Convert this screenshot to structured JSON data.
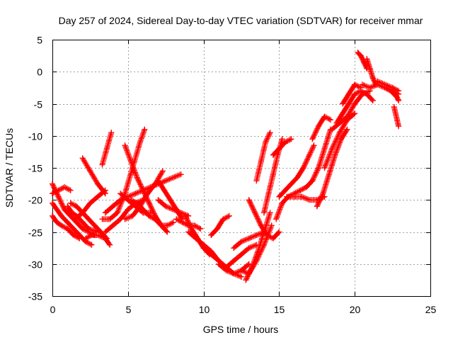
{
  "chart_data": {
    "type": "scatter",
    "title": "Day 257 of 2024, Sidereal Day-to-day VTEC variation (SDTVAR) for receiver mmar",
    "xlabel": "GPS time / hours",
    "ylabel": "SDTVAR / TECUs",
    "xlim": [
      0,
      25
    ],
    "ylim": [
      -35,
      5
    ],
    "xticks": [
      0,
      5,
      10,
      15,
      20,
      25
    ],
    "yticks": [
      -35,
      -30,
      -25,
      -20,
      -15,
      -10,
      -5,
      0,
      5
    ],
    "grid": true,
    "marker": "+",
    "color": "#ff0000",
    "series": [
      {
        "name": "s1",
        "x": [
          0.0,
          0.4,
          0.8,
          1.2,
          1.6,
          2.0,
          2.4,
          2.8
        ],
        "y": [
          -17.5,
          -19.5,
          -21.5,
          -22.5,
          -23.5,
          -24.5,
          -25.0,
          -25.5
        ]
      },
      {
        "name": "s2",
        "x": [
          0.0,
          0.3,
          0.6,
          1.0,
          1.4,
          1.8,
          2.2,
          2.6
        ],
        "y": [
          -20.5,
          -21.5,
          -22.5,
          -23.5,
          -24.5,
          -25.5,
          -26.5,
          -27.0
        ]
      },
      {
        "name": "s3",
        "x": [
          0.0,
          0.3,
          0.6,
          1.0,
          1.4,
          1.8
        ],
        "y": [
          -22.5,
          -23.5,
          -24.0,
          -24.5,
          -25.5,
          -26.0
        ]
      },
      {
        "name": "s4",
        "x": [
          0.0,
          0.4,
          0.8,
          1.2
        ],
        "y": [
          -19.0,
          -18.5,
          -18.0,
          -18.5
        ]
      },
      {
        "name": "s5",
        "x": [
          1.2,
          1.6,
          2.0,
          2.4,
          2.8,
          3.2,
          3.6
        ],
        "y": [
          -20.5,
          -21.0,
          -22.0,
          -23.0,
          -24.0,
          -25.0,
          -26.0
        ]
      },
      {
        "name": "s6",
        "x": [
          1.0,
          1.3,
          1.6,
          2.0,
          2.4,
          3.0
        ],
        "y": [
          -21.0,
          -22.0,
          -22.5,
          -23.5,
          -24.5,
          -25.0
        ]
      },
      {
        "name": "s7",
        "x": [
          1.5,
          2.0,
          2.5,
          3.0,
          3.5
        ],
        "y": [
          -23.0,
          -22.0,
          -20.5,
          -19.5,
          -18.5
        ]
      },
      {
        "name": "s8",
        "x": [
          2.0,
          2.5,
          3.0,
          3.5
        ],
        "y": [
          -13.5,
          -15.5,
          -17.5,
          -19.0
        ]
      },
      {
        "name": "s9",
        "x": [
          2.2,
          2.6,
          3.0,
          3.5,
          3.8
        ],
        "y": [
          -26.0,
          -25.5,
          -25.5,
          -26.0,
          -27.0
        ]
      },
      {
        "name": "s10",
        "x": [
          3.3,
          3.6,
          3.9
        ],
        "y": [
          -14.5,
          -12.0,
          -9.5
        ]
      },
      {
        "name": "s11",
        "x": [
          3.3,
          3.8,
          4.3,
          4.8,
          5.3,
          5.8,
          6.1
        ],
        "y": [
          -23.0,
          -23.0,
          -22.0,
          -19.0,
          -15.0,
          -11.0,
          -9.0
        ]
      },
      {
        "name": "s12",
        "x": [
          3.5,
          4.0,
          4.5,
          5.0,
          5.5,
          6.0
        ],
        "y": [
          -22.0,
          -21.0,
          -20.0,
          -19.5,
          -19.0,
          -18.5
        ]
      },
      {
        "name": "s13",
        "x": [
          3.5,
          4.0,
          4.5,
          5.0,
          5.5,
          6.0
        ],
        "y": [
          -25.0,
          -24.0,
          -23.0,
          -21.5,
          -20.5,
          -20.0
        ]
      },
      {
        "name": "s14",
        "x": [
          4.5,
          5.0,
          5.5,
          6.0,
          6.5
        ],
        "y": [
          -19.0,
          -20.0,
          -21.0,
          -22.0,
          -22.0
        ]
      },
      {
        "name": "s15",
        "x": [
          4.8,
          5.3,
          5.8,
          6.3,
          6.8,
          7.3
        ],
        "y": [
          -23.0,
          -22.5,
          -21.0,
          -19.0,
          -17.5,
          -15.5
        ]
      },
      {
        "name": "s16",
        "x": [
          5.2,
          5.6,
          6.0,
          6.4,
          6.8,
          7.2,
          7.6,
          8.0
        ],
        "y": [
          -20.0,
          -20.5,
          -21.5,
          -22.5,
          -23.0,
          -24.0,
          -24.0,
          -23.5
        ]
      },
      {
        "name": "s17",
        "x": [
          4.8,
          5.2,
          5.6,
          6.0,
          6.4,
          6.8,
          7.2,
          7.6
        ],
        "y": [
          -11.5,
          -14.0,
          -16.5,
          -18.5,
          -20.5,
          -22.5,
          -24.0,
          -25.0
        ]
      },
      {
        "name": "s18",
        "x": [
          6.0,
          6.5,
          7.0,
          7.5,
          8.0,
          8.5
        ],
        "y": [
          -18.5,
          -18.0,
          -17.5,
          -17.0,
          -16.5,
          -16.0
        ]
      },
      {
        "name": "s19",
        "x": [
          7.0,
          7.4,
          7.8,
          8.2,
          8.6
        ],
        "y": [
          -17.0,
          -18.5,
          -20.0,
          -21.5,
          -23.0
        ]
      },
      {
        "name": "s20",
        "x": [
          7.0,
          7.5,
          8.0,
          8.5,
          9.0
        ],
        "y": [
          -20.0,
          -21.0,
          -21.5,
          -22.0,
          -22.5
        ]
      },
      {
        "name": "s21",
        "x": [
          8.2,
          8.6,
          9.0,
          9.4,
          9.8
        ],
        "y": [
          -23.0,
          -23.5,
          -24.0,
          -24.0,
          -24.5
        ]
      },
      {
        "name": "s22",
        "x": [
          8.8,
          9.2,
          9.6,
          10.0,
          10.4
        ],
        "y": [
          -22.5,
          -24.5,
          -26.0,
          -27.5,
          -28.5
        ]
      },
      {
        "name": "s23",
        "x": [
          9.0,
          9.5,
          10.0,
          10.5,
          11.0,
          11.5
        ],
        "y": [
          -25.0,
          -26.0,
          -27.0,
          -28.0,
          -29.5,
          -30.5
        ]
      },
      {
        "name": "s24",
        "x": [
          10.0,
          10.5,
          11.0,
          11.5,
          12.0,
          12.5
        ],
        "y": [
          -27.5,
          -28.5,
          -29.5,
          -30.5,
          -31.5,
          -32.0
        ]
      },
      {
        "name": "s25",
        "x": [
          10.5,
          10.9,
          11.3,
          11.7
        ],
        "y": [
          -25.5,
          -24.5,
          -23.0,
          -22.5
        ]
      },
      {
        "name": "s26",
        "x": [
          11.0,
          11.5,
          12.0,
          12.5,
          13.0
        ],
        "y": [
          -30.0,
          -31.0,
          -31.5,
          -31.0,
          -30.0
        ]
      },
      {
        "name": "s27",
        "x": [
          11.5,
          12.0,
          12.5,
          13.0,
          13.5
        ],
        "y": [
          -30.5,
          -29.5,
          -28.5,
          -27.5,
          -27.0
        ]
      },
      {
        "name": "s28",
        "x": [
          12.0,
          12.5,
          13.0,
          13.5,
          14.0
        ],
        "y": [
          -27.5,
          -26.5,
          -26.0,
          -25.5,
          -25.0
        ]
      },
      {
        "name": "s29",
        "x": [
          12.5,
          13.0,
          13.5,
          14.0,
          14.5
        ],
        "y": [
          -31.0,
          -31.5,
          -29.5,
          -27.0,
          -24.0
        ]
      },
      {
        "name": "s30",
        "x": [
          12.8,
          13.2,
          13.6,
          14.0,
          14.4
        ],
        "y": [
          -32.5,
          -30.5,
          -28.0,
          -25.0,
          -22.0
        ]
      },
      {
        "name": "s31",
        "x": [
          13.0,
          13.4,
          13.8,
          14.2,
          14.6,
          15.0
        ],
        "y": [
          -20.0,
          -22.0,
          -24.0,
          -25.5,
          -26.0,
          -25.0
        ]
      },
      {
        "name": "s32",
        "x": [
          13.5,
          13.8,
          14.1,
          14.4
        ],
        "y": [
          -17.0,
          -14.0,
          -11.0,
          -9.5
        ]
      },
      {
        "name": "s33",
        "x": [
          14.0,
          14.3,
          14.6,
          14.9,
          15.2
        ],
        "y": [
          -22.0,
          -19.0,
          -16.0,
          -13.0,
          -10.5
        ]
      },
      {
        "name": "s34",
        "x": [
          14.6,
          15.0,
          15.4,
          15.8
        ],
        "y": [
          -13.0,
          -12.0,
          -11.0,
          -10.5
        ]
      },
      {
        "name": "s35",
        "x": [
          14.8,
          15.2,
          15.6,
          16.0,
          16.4,
          16.8
        ],
        "y": [
          -23.0,
          -20.5,
          -19.5,
          -19.0,
          -18.5,
          -18.0
        ]
      },
      {
        "name": "s36",
        "x": [
          15.0,
          15.4,
          15.8,
          16.2,
          16.6,
          17.0,
          17.3
        ],
        "y": [
          -19.5,
          -18.5,
          -17.5,
          -16.5,
          -15.0,
          -13.0,
          -11.5
        ]
      },
      {
        "name": "s37",
        "x": [
          15.5,
          16.0,
          16.5,
          17.0,
          17.5,
          18.0
        ],
        "y": [
          -19.5,
          -19.5,
          -19.5,
          -20.0,
          -20.0,
          -19.5
        ]
      },
      {
        "name": "s38",
        "x": [
          17.5,
          17.9,
          18.3,
          18.7,
          19.1,
          19.5
        ],
        "y": [
          -21.0,
          -19.0,
          -16.0,
          -13.0,
          -10.5,
          -9.0
        ]
      },
      {
        "name": "s39",
        "x": [
          16.8,
          17.2,
          17.6,
          18.0,
          18.4
        ],
        "y": [
          -18.0,
          -17.0,
          -15.0,
          -12.0,
          -9.0
        ]
      },
      {
        "name": "s40",
        "x": [
          17.2,
          17.6,
          18.0,
          18.4
        ],
        "y": [
          -10.5,
          -8.5,
          -7.0,
          -7.5
        ]
      },
      {
        "name": "s41",
        "x": [
          18.0,
          18.5,
          19.0,
          19.5,
          20.0
        ],
        "y": [
          -15.0,
          -12.0,
          -9.5,
          -7.5,
          -6.5
        ]
      },
      {
        "name": "s42",
        "x": [
          18.5,
          19.0,
          19.5,
          20.0,
          20.5,
          21.0
        ],
        "y": [
          -9.0,
          -8.0,
          -7.0,
          -5.0,
          -3.5,
          -3.0
        ]
      },
      {
        "name": "s43",
        "x": [
          18.8,
          19.2,
          19.6,
          20.0,
          20.4,
          20.8,
          21.2
        ],
        "y": [
          -8.0,
          -6.5,
          -5.0,
          -3.5,
          -3.0,
          -3.5,
          -4.5
        ]
      },
      {
        "name": "s44",
        "x": [
          19.2,
          19.6,
          20.0,
          20.4
        ],
        "y": [
          -5.0,
          -3.5,
          -2.0,
          -2.5
        ]
      },
      {
        "name": "s45",
        "x": [
          20.2,
          20.4,
          20.6,
          20.8
        ],
        "y": [
          3.0,
          2.5,
          1.5,
          0.5
        ]
      },
      {
        "name": "s46",
        "x": [
          20.8,
          21.0,
          21.2,
          21.4
        ],
        "y": [
          2.0,
          0.5,
          -1.0,
          -2.0
        ]
      },
      {
        "name": "s47",
        "x": [
          20.5,
          21.0,
          21.5,
          22.0,
          22.5,
          22.9
        ],
        "y": [
          -2.0,
          -2.5,
          -2.0,
          -2.5,
          -3.0,
          -3.5
        ]
      },
      {
        "name": "s48",
        "x": [
          21.5,
          22.0,
          22.5,
          22.9
        ],
        "y": [
          -1.5,
          -2.0,
          -2.5,
          -3.0
        ]
      },
      {
        "name": "s49",
        "x": [
          22.0,
          22.4,
          22.8,
          22.9
        ],
        "y": [
          -2.5,
          -3.0,
          -4.0,
          -4.5
        ]
      },
      {
        "name": "s50",
        "x": [
          22.6,
          22.8,
          22.9
        ],
        "y": [
          -5.5,
          -7.5,
          -8.5
        ]
      }
    ]
  }
}
